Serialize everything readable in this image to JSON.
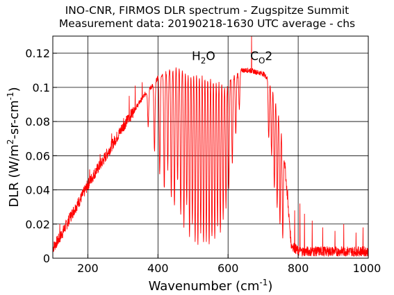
{
  "chart_data": {
    "type": "line",
    "title": "INO-CNR, FIRMOS DLR spectrum - Zugspitze Summit",
    "subtitle": "Measurement data: 20190218-1630 UTC average - chs",
    "xlabel": "Wavenumber (cm-1)",
    "ylabel": "DLR (W/m2-sr-cm-1)",
    "xlim": [
      100,
      1000
    ],
    "ylim": [
      0,
      0.13
    ],
    "grid": true,
    "x_ticks": [
      "200",
      "400",
      "600",
      "800",
      "1000"
    ],
    "y_ticks": [
      "0",
      "0.02",
      "0.04",
      "0.06",
      "0.08",
      "0.1",
      "0.12"
    ],
    "annotations": [
      {
        "text": "H2O",
        "x": 530,
        "y": 0.12
      },
      {
        "text": "CO2",
        "x": 695,
        "y": 0.12
      }
    ],
    "series": [
      {
        "color": "#ff0000",
        "envelope": {
          "x": [
            100,
            120,
            140,
            160,
            180,
            200,
            220,
            240,
            260,
            280,
            300,
            320,
            340,
            350,
            360,
            370,
            380,
            390,
            400,
            420,
            440,
            460,
            480,
            500,
            520,
            540,
            560,
            580,
            600,
            620,
            640,
            660,
            680,
            700,
            710,
            720,
            730,
            740,
            750,
            760,
            780,
            800,
            850,
            900,
            950,
            1000
          ],
          "y": [
            0.006,
            0.012,
            0.02,
            0.028,
            0.035,
            0.043,
            0.05,
            0.056,
            0.063,
            0.07,
            0.077,
            0.083,
            0.089,
            0.092,
            0.095,
            0.098,
            0.1,
            0.102,
            0.106,
            0.109,
            0.112,
            0.113,
            0.114,
            0.114,
            0.113,
            0.112,
            0.11,
            0.108,
            0.105,
            0.107,
            0.11,
            0.11,
            0.109,
            0.108,
            0.106,
            0.104,
            0.1,
            0.092,
            0.08,
            0.06,
            0.008,
            0.004,
            0.004,
            0.004,
            0.004,
            0.004
          ]
        },
        "absorption_minima": [
          {
            "x": 372,
            "y": 0.078
          },
          {
            "x": 390,
            "y": 0.062
          },
          {
            "x": 405,
            "y": 0.05
          },
          {
            "x": 418,
            "y": 0.04
          },
          {
            "x": 428,
            "y": 0.052
          },
          {
            "x": 438,
            "y": 0.035
          },
          {
            "x": 447,
            "y": 0.03
          },
          {
            "x": 456,
            "y": 0.045
          },
          {
            "x": 465,
            "y": 0.025
          },
          {
            "x": 474,
            "y": 0.018
          },
          {
            "x": 482,
            "y": 0.032
          },
          {
            "x": 490,
            "y": 0.012
          },
          {
            "x": 498,
            "y": 0.02
          },
          {
            "x": 506,
            "y": 0.01
          },
          {
            "x": 514,
            "y": 0.008
          },
          {
            "x": 522,
            "y": 0.016
          },
          {
            "x": 530,
            "y": 0.008
          },
          {
            "x": 538,
            "y": 0.01
          },
          {
            "x": 546,
            "y": 0.007
          },
          {
            "x": 554,
            "y": 0.012
          },
          {
            "x": 562,
            "y": 0.01
          },
          {
            "x": 570,
            "y": 0.018
          },
          {
            "x": 578,
            "y": 0.015
          },
          {
            "x": 586,
            "y": 0.024
          },
          {
            "x": 594,
            "y": 0.03
          },
          {
            "x": 602,
            "y": 0.04
          },
          {
            "x": 612,
            "y": 0.055
          },
          {
            "x": 622,
            "y": 0.072
          },
          {
            "x": 632,
            "y": 0.088
          },
          {
            "x": 716,
            "y": 0.07
          },
          {
            "x": 724,
            "y": 0.06
          },
          {
            "x": 732,
            "y": 0.04
          },
          {
            "x": 740,
            "y": 0.03
          },
          {
            "x": 748,
            "y": 0.02
          },
          {
            "x": 756,
            "y": 0.012
          }
        ],
        "spikes": [
          {
            "x": 120,
            "y": 0.02
          },
          {
            "x": 150,
            "y": 0.027
          },
          {
            "x": 205,
            "y": 0.052
          },
          {
            "x": 235,
            "y": 0.061
          },
          {
            "x": 268,
            "y": 0.073
          },
          {
            "x": 302,
            "y": 0.082
          },
          {
            "x": 318,
            "y": 0.095
          },
          {
            "x": 335,
            "y": 0.101
          },
          {
            "x": 355,
            "y": 0.103
          },
          {
            "x": 667,
            "y": 0.13
          },
          {
            "x": 770,
            "y": 0.04
          },
          {
            "x": 790,
            "y": 0.028
          },
          {
            "x": 805,
            "y": 0.032
          },
          {
            "x": 818,
            "y": 0.026
          },
          {
            "x": 840,
            "y": 0.022
          },
          {
            "x": 870,
            "y": 0.018
          },
          {
            "x": 905,
            "y": 0.016
          },
          {
            "x": 930,
            "y": 0.02
          },
          {
            "x": 965,
            "y": 0.015
          },
          {
            "x": 985,
            "y": 0.018
          }
        ]
      }
    ]
  }
}
